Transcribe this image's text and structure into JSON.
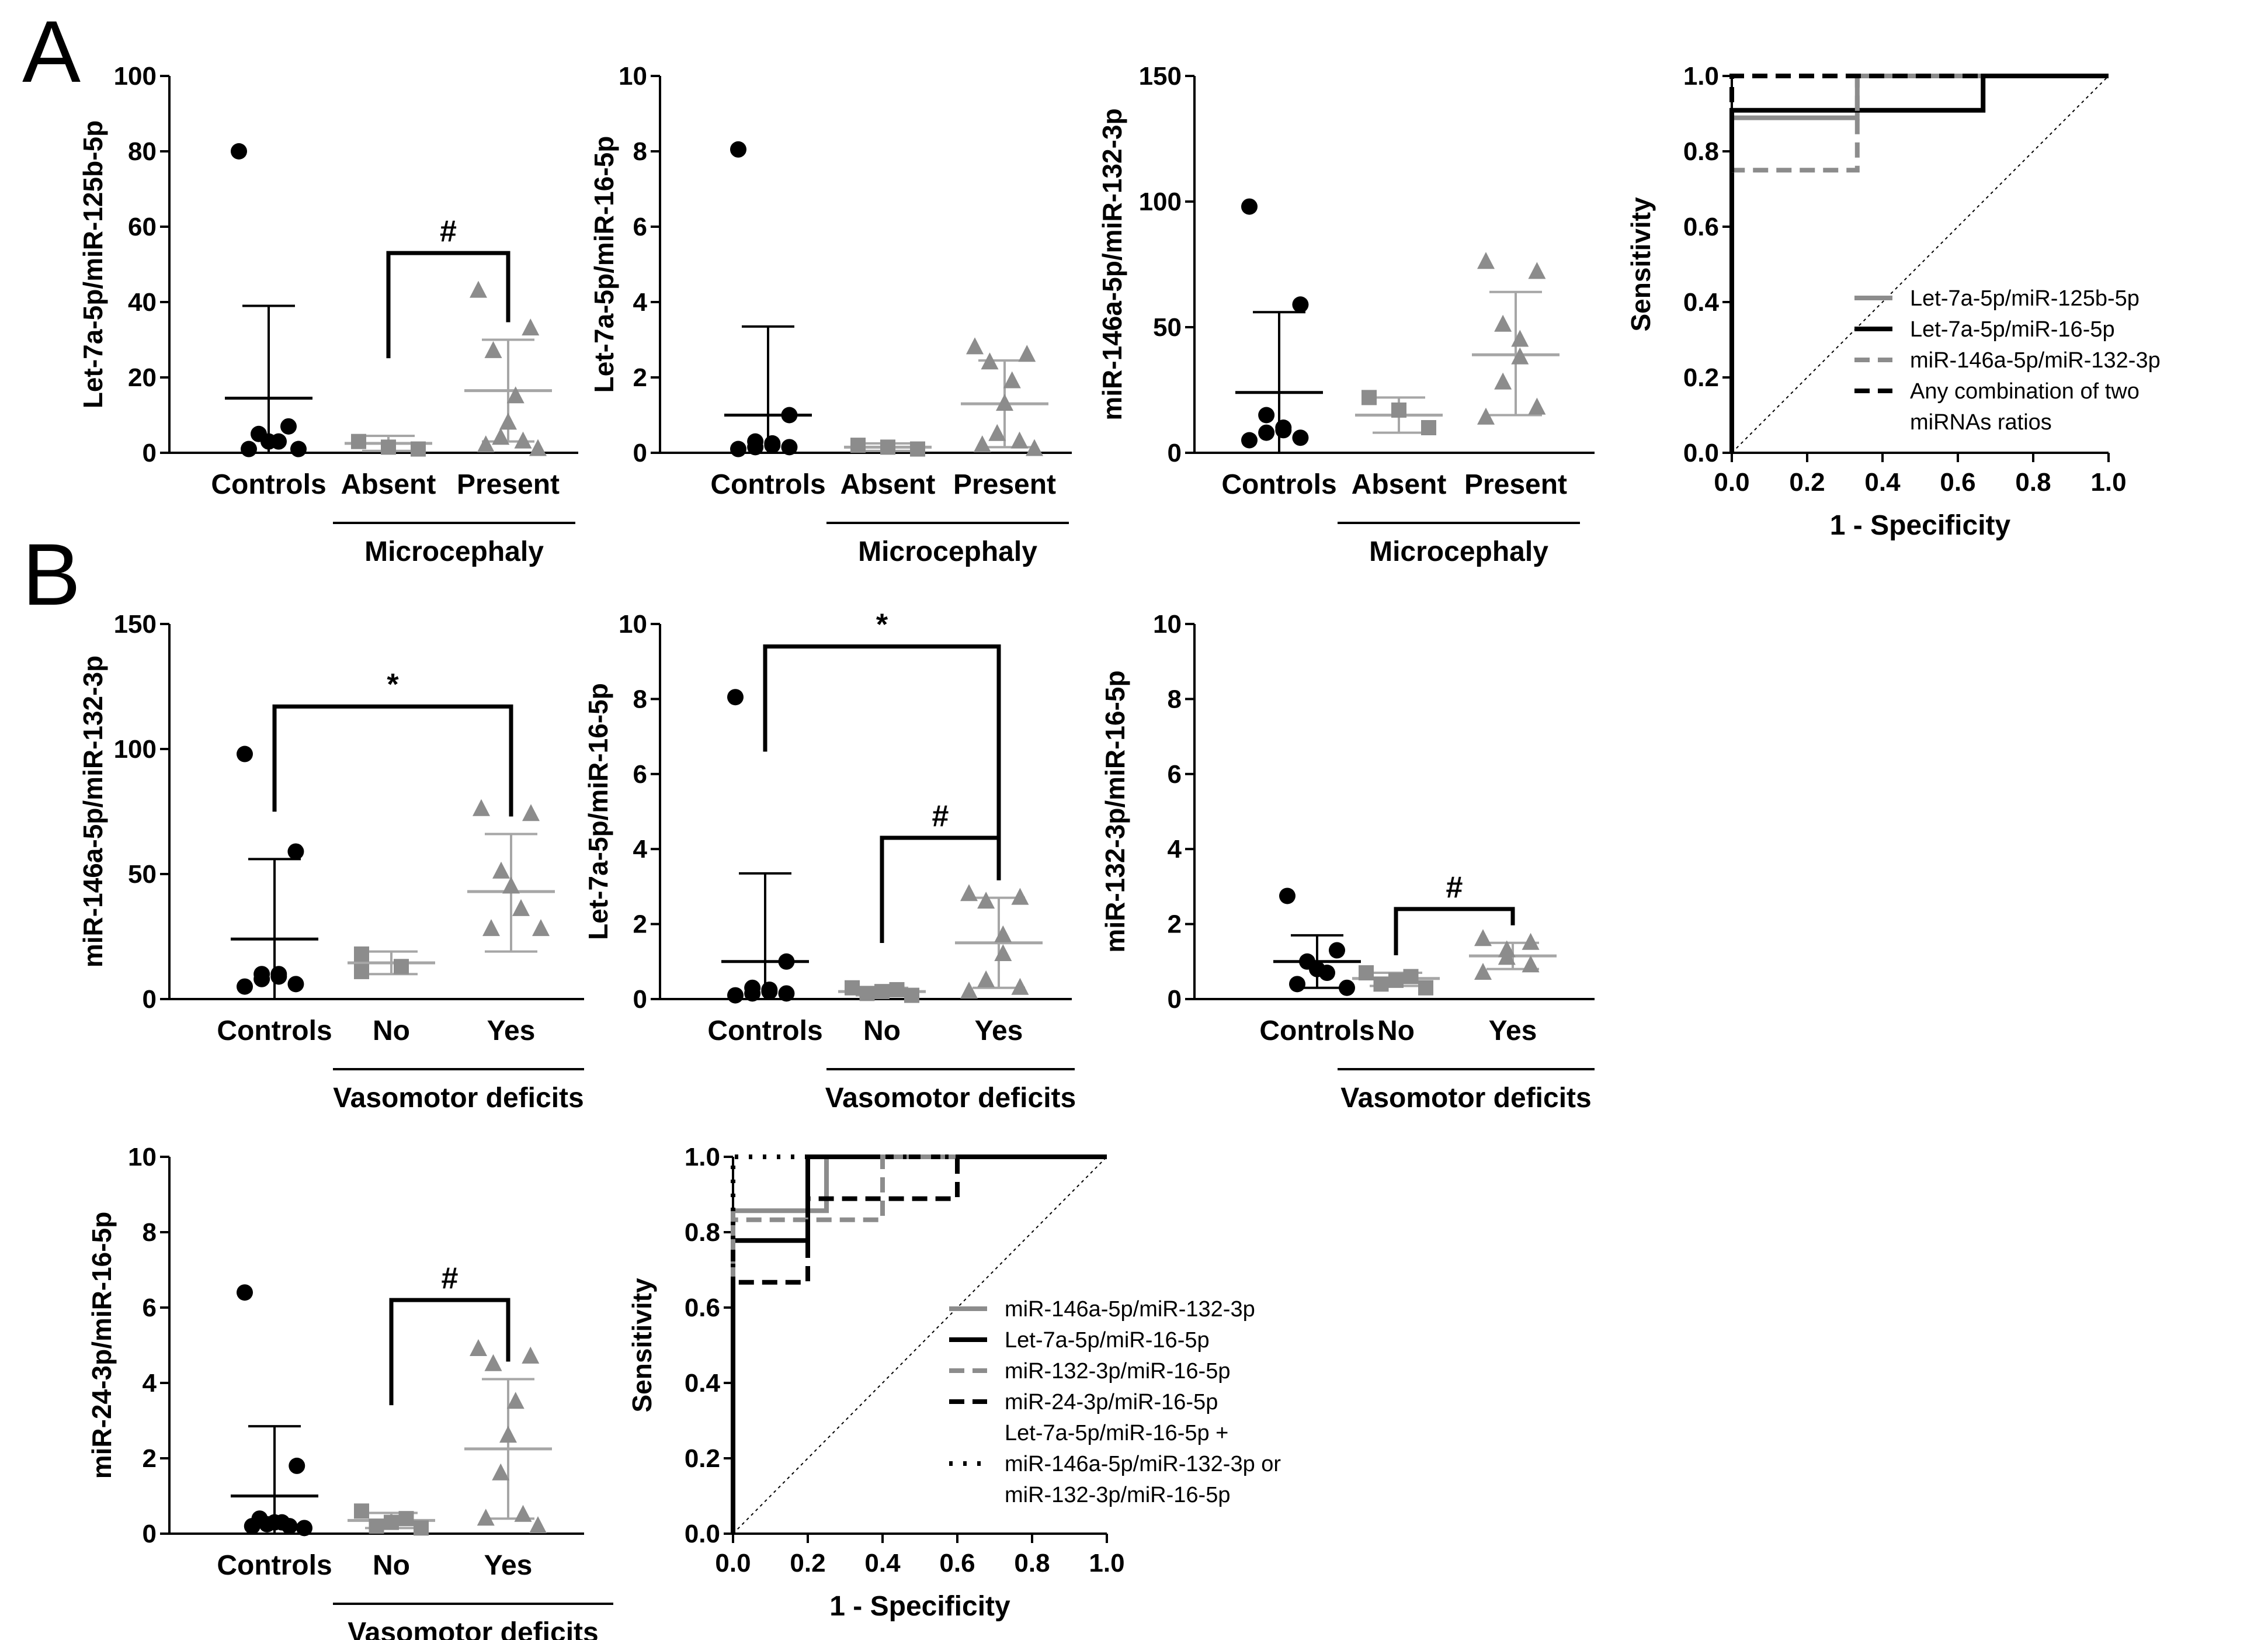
{
  "colors": {
    "black": "#000000",
    "gray": "#8c8c8c",
    "lightgray": "#a6a6a6"
  },
  "panel_labels": [
    "A",
    "B"
  ],
  "chart_data": [
    {
      "id": "A1",
      "type": "scatter",
      "ylabel": "Let-7a-5p/miR-125b-5p",
      "ylim": [
        0,
        100
      ],
      "yticks": [
        0,
        20,
        40,
        60,
        80,
        100
      ],
      "categories": [
        "Controls",
        "Absent",
        "Present"
      ],
      "group_label": "Microcephaly",
      "series": [
        {
          "name": "Controls",
          "marker": "circle",
          "color": "black",
          "points": [
            80,
            7,
            5,
            3,
            3,
            1,
            1
          ],
          "mean": 14.5,
          "sd_low": 0,
          "sd_high": 39
        },
        {
          "name": "Absent",
          "marker": "square",
          "color": "gray",
          "points": [
            3,
            1.5,
            1
          ],
          "mean": 2.5,
          "sd_low": 0.5,
          "sd_high": 4.5
        },
        {
          "name": "Present",
          "marker": "triangle",
          "color": "gray",
          "points": [
            43,
            33,
            27,
            15,
            8,
            4,
            3,
            2,
            1
          ],
          "mean": 16.5,
          "sd_low": 3,
          "sd_high": 30
        }
      ],
      "brackets": [
        {
          "from": 1,
          "to": 2,
          "y": 53,
          "label": "#"
        }
      ]
    },
    {
      "id": "A2",
      "type": "scatter",
      "ylabel": "Let-7a-5p/miR-16-5p",
      "ylim": [
        0,
        10
      ],
      "yticks": [
        0,
        2,
        4,
        6,
        8,
        10
      ],
      "categories": [
        "Controls",
        "Absent",
        "Present"
      ],
      "group_label": "Microcephaly",
      "series": [
        {
          "name": "Controls",
          "marker": "circle",
          "color": "black",
          "points": [
            8.05,
            1.0,
            0.3,
            0.25,
            0.2,
            0.15,
            0.15,
            0.1
          ],
          "mean": 1.0,
          "sd_low": 0,
          "sd_high": 3.35
        },
        {
          "name": "Absent",
          "marker": "square",
          "color": "gray",
          "points": [
            0.2,
            0.15,
            0.1
          ],
          "mean": 0.15,
          "sd_low": 0.05,
          "sd_high": 0.25
        },
        {
          "name": "Present",
          "marker": "triangle",
          "color": "gray",
          "points": [
            2.8,
            2.6,
            2.4,
            1.9,
            1.3,
            0.5,
            0.3,
            0.2,
            0.1
          ],
          "mean": 1.3,
          "sd_low": 0.15,
          "sd_high": 2.45
        }
      ],
      "brackets": []
    },
    {
      "id": "A3",
      "type": "scatter",
      "ylabel": "miR-146a-5p/miR-132-3p",
      "ylim": [
        0,
        150
      ],
      "yticks": [
        0,
        50,
        100,
        150
      ],
      "categories": [
        "Controls",
        "Absent",
        "Present"
      ],
      "group_label": "Microcephaly",
      "series": [
        {
          "name": "Controls",
          "marker": "circle",
          "color": "black",
          "points": [
            98,
            59,
            15,
            10,
            9,
            8,
            6,
            5
          ],
          "mean": 24,
          "sd_low": 0,
          "sd_high": 56
        },
        {
          "name": "Absent",
          "marker": "square",
          "color": "gray",
          "points": [
            22,
            17,
            10
          ],
          "mean": 15,
          "sd_low": 8,
          "sd_high": 22
        },
        {
          "name": "Present",
          "marker": "triangle",
          "color": "gray",
          "points": [
            76,
            72,
            51,
            45,
            38,
            28,
            18,
            14
          ],
          "mean": 39,
          "sd_low": 15,
          "sd_high": 64
        }
      ],
      "brackets": []
    },
    {
      "id": "A4",
      "type": "line",
      "xlabel": "1 - Specificity",
      "ylabel": "Sensitivity",
      "xlim": [
        0,
        1
      ],
      "ylim": [
        0,
        1
      ],
      "ticks": [
        "0.0",
        "0.2",
        "0.4",
        "0.6",
        "0.8",
        "1.0"
      ],
      "series": [
        {
          "name": "Let-7a-5p/miR-125b-5p",
          "color": "gray",
          "style": "solid",
          "x": [
            0,
            0,
            0.333,
            0.333,
            1
          ],
          "y": [
            0,
            0.889,
            0.889,
            1,
            1
          ]
        },
        {
          "name": "Let-7a-5p/miR-16-5p",
          "color": "black",
          "style": "solid",
          "x": [
            0,
            0,
            0.667,
            0.667,
            1
          ],
          "y": [
            0,
            0.909,
            0.909,
            1,
            1
          ]
        },
        {
          "name": "miR-146a-5p/miR-132-3p",
          "color": "gray",
          "style": "dashed",
          "x": [
            0,
            0,
            0.333,
            0.333,
            1
          ],
          "y": [
            0,
            0.75,
            0.75,
            1,
            1
          ]
        },
        {
          "name": "Any combination of two miRNAs ratios",
          "color": "black",
          "style": "dashed",
          "x": [
            0,
            0,
            1
          ],
          "y": [
            0,
            1,
            1
          ]
        }
      ],
      "legend": [
        "Let-7a-5p/miR-125b-5p",
        "Let-7a-5p/miR-16-5p",
        "miR-146a-5p/miR-132-3p",
        "Any combination of two",
        "miRNAs ratios"
      ]
    },
    {
      "id": "B1",
      "type": "scatter",
      "ylabel": "miR-146a-5p/miR-132-3p",
      "ylim": [
        0,
        150
      ],
      "yticks": [
        0,
        50,
        100,
        150
      ],
      "categories": [
        "Controls",
        "No",
        "Yes"
      ],
      "group_label": "Vasomotor deficits",
      "series": [
        {
          "name": "Controls",
          "marker": "circle",
          "color": "black",
          "points": [
            98,
            59,
            10,
            10,
            9,
            8,
            6,
            5
          ],
          "mean": 24,
          "sd_low": 0,
          "sd_high": 56
        },
        {
          "name": "No",
          "marker": "square",
          "color": "gray",
          "points": [
            18,
            13,
            13,
            11
          ],
          "mean": 14.5,
          "sd_low": 10,
          "sd_high": 19
        },
        {
          "name": "Yes",
          "marker": "triangle",
          "color": "gray",
          "points": [
            76,
            74,
            51,
            45,
            36,
            28,
            28
          ],
          "mean": 43,
          "sd_low": 19,
          "sd_high": 66
        }
      ],
      "brackets": [
        {
          "from": 0,
          "to": 2,
          "y": 117,
          "label": "*"
        }
      ]
    },
    {
      "id": "B2",
      "type": "scatter",
      "ylabel": "Let-7a-5p/miR-16-5p",
      "ylim": [
        0,
        10
      ],
      "yticks": [
        0,
        2,
        4,
        6,
        8,
        10
      ],
      "categories": [
        "Controls",
        "No",
        "Yes"
      ],
      "group_label": "Vasomotor deficits",
      "series": [
        {
          "name": "Controls",
          "marker": "circle",
          "color": "black",
          "points": [
            8.05,
            1.0,
            0.3,
            0.25,
            0.2,
            0.15,
            0.15,
            0.1
          ],
          "mean": 1.0,
          "sd_low": 0,
          "sd_high": 3.35
        },
        {
          "name": "No",
          "marker": "square",
          "color": "gray",
          "points": [
            0.3,
            0.25,
            0.2,
            0.15,
            0.1
          ],
          "mean": 0.2,
          "sd_low": 0.1,
          "sd_high": 0.3
        },
        {
          "name": "Yes",
          "marker": "triangle",
          "color": "gray",
          "points": [
            2.8,
            2.7,
            2.6,
            1.7,
            1.2,
            0.5,
            0.3,
            0.2
          ],
          "mean": 1.5,
          "sd_low": 0.3,
          "sd_high": 2.7
        }
      ],
      "brackets": [
        {
          "from": 0,
          "to": 2,
          "y": 9.4,
          "label": "*"
        },
        {
          "from": 1,
          "to": 2,
          "y": 4.3,
          "label": "#"
        }
      ]
    },
    {
      "id": "B3",
      "type": "scatter",
      "ylabel": "miR-132-3p/miR-16-5p",
      "ylim": [
        0,
        10
      ],
      "yticks": [
        0,
        2,
        4,
        6,
        8,
        10
      ],
      "categories": [
        "Controls",
        "No",
        "Yes"
      ],
      "group_label": "Vasomotor deficits",
      "series": [
        {
          "name": "Controls",
          "marker": "circle",
          "color": "black",
          "points": [
            2.75,
            1.3,
            1.0,
            0.8,
            0.7,
            0.4,
            0.3
          ],
          "mean": 1.0,
          "sd_low": 0.3,
          "sd_high": 1.7
        },
        {
          "name": "No",
          "marker": "square",
          "color": "gray",
          "points": [
            0.7,
            0.6,
            0.5,
            0.4,
            0.3
          ],
          "mean": 0.55,
          "sd_low": 0.35,
          "sd_high": 0.7
        },
        {
          "name": "Yes",
          "marker": "triangle",
          "color": "gray",
          "points": [
            1.6,
            1.5,
            1.3,
            1.1,
            0.9,
            0.7
          ],
          "mean": 1.15,
          "sd_low": 0.8,
          "sd_high": 1.5
        },
        {
          "name": "_",
          "marker": "none",
          "color": "gray",
          "points": []
        }
      ],
      "brackets": [
        {
          "from": 1,
          "to": 2,
          "y": 2.4,
          "label": "#"
        }
      ]
    },
    {
      "id": "B4",
      "type": "scatter",
      "ylabel": "miR-24-3p/miR-16-5p",
      "ylim": [
        0,
        10
      ],
      "yticks": [
        0,
        2,
        4,
        6,
        8,
        10
      ],
      "categories": [
        "Controls",
        "No",
        "Yes"
      ],
      "group_label": "Vasomotor deficits",
      "series": [
        {
          "name": "Controls",
          "marker": "circle",
          "color": "black",
          "points": [
            6.4,
            1.8,
            0.4,
            0.3,
            0.3,
            0.25,
            0.2,
            0.2,
            0.15
          ],
          "mean": 1.0,
          "sd_low": 0,
          "sd_high": 2.85
        },
        {
          "name": "No",
          "marker": "square",
          "color": "gray",
          "points": [
            0.6,
            0.4,
            0.3,
            0.2,
            0.15
          ],
          "mean": 0.35,
          "sd_low": 0.15,
          "sd_high": 0.55
        },
        {
          "name": "Yes",
          "marker": "triangle",
          "color": "gray",
          "points": [
            4.9,
            4.7,
            4.5,
            3.5,
            2.6,
            1.6,
            0.5,
            0.4,
            0.2
          ],
          "mean": 2.25,
          "sd_low": 0.4,
          "sd_high": 4.1
        }
      ],
      "brackets": [
        {
          "from": 1,
          "to": 2,
          "y": 6.2,
          "label": "#"
        }
      ]
    },
    {
      "id": "B5",
      "type": "line",
      "xlabel": "1 - Specificity",
      "ylabel": "Sensitivity",
      "xlim": [
        0,
        1
      ],
      "ylim": [
        0,
        1
      ],
      "ticks": [
        "0.0",
        "0.2",
        "0.4",
        "0.6",
        "0.8",
        "1.0"
      ],
      "series": [
        {
          "name": "miR-146a-5p/miR-132-3p",
          "color": "gray",
          "style": "solid",
          "x": [
            0,
            0,
            0.25,
            0.25,
            1
          ],
          "y": [
            0,
            0.857,
            0.857,
            1,
            1
          ]
        },
        {
          "name": "Let-7a-5p/miR-16-5p",
          "color": "black",
          "style": "solid",
          "x": [
            0,
            0,
            0.2,
            0.2,
            1
          ],
          "y": [
            0,
            0.778,
            0.778,
            1,
            1
          ]
        },
        {
          "name": "miR-132-3p/miR-16-5p",
          "color": "gray",
          "style": "dashed",
          "x": [
            0,
            0,
            0.4,
            0.4,
            1
          ],
          "y": [
            0,
            0.833,
            0.833,
            1,
            1
          ]
        },
        {
          "name": "miR-24-3p/miR-16-5p",
          "color": "black",
          "style": "dashed",
          "x": [
            0,
            0,
            0.2,
            0.2,
            0.6,
            0.6,
            1
          ],
          "y": [
            0,
            0.667,
            0.667,
            0.889,
            0.889,
            1,
            1
          ]
        },
        {
          "name": "Let-7a-5p/miR-16-5p + miR-146a-5p/miR-132-3p or miR-132-3p/miR-16-5p",
          "color": "black",
          "style": "dotted",
          "x": [
            0,
            0,
            1
          ],
          "y": [
            0,
            1,
            1
          ]
        }
      ],
      "legend": [
        "miR-146a-5p/miR-132-3p",
        "Let-7a-5p/miR-16-5p",
        "miR-132-3p/miR-16-5p",
        "miR-24-3p/miR-16-5p",
        "Let-7a-5p/miR-16-5p +",
        "miR-146a-5p/miR-132-3p or",
        "miR-132-3p/miR-16-5p"
      ]
    }
  ]
}
